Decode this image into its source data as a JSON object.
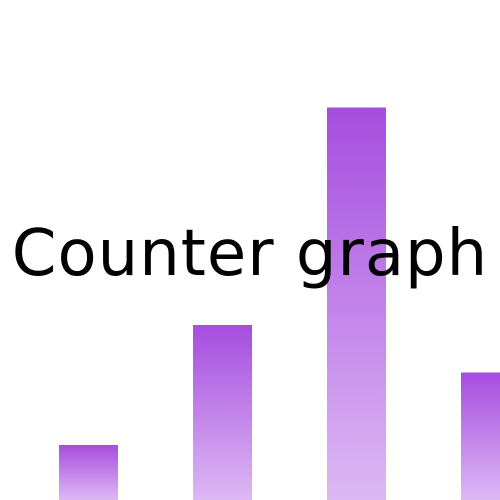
{
  "title": "Counter graph",
  "bar_color_top": "#a64ddf",
  "bar_color_bottom": "#ddb8f4",
  "bars": {
    "values": [
      0.11,
      0.35,
      0.785,
      0.255
    ]
  }
}
